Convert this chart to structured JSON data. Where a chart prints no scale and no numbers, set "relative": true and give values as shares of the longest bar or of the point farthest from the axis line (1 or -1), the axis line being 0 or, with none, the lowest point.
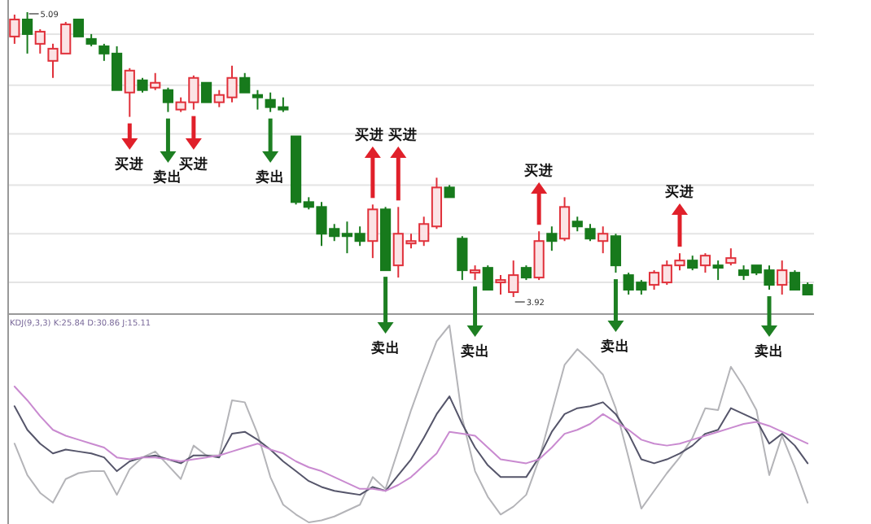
{
  "chart_data": [
    {
      "type": "candlestick",
      "categories": [
        null,
        null,
        null,
        null,
        null,
        null,
        null,
        null,
        null,
        null,
        null,
        null,
        null,
        null,
        null,
        null,
        null,
        null,
        null,
        null,
        null,
        null,
        null,
        null,
        null,
        null,
        null,
        null,
        null,
        null,
        null,
        null,
        null,
        null,
        null,
        null,
        null,
        null,
        null,
        null,
        null,
        null,
        null,
        null,
        null,
        null,
        null,
        null,
        null,
        null,
        null,
        null,
        null,
        null,
        null,
        null,
        null,
        null,
        null,
        null,
        null,
        null,
        null
      ],
      "ylim": [
        3.85,
        5.14
      ],
      "grid": "y",
      "yticks": [
        {
          "value": 5.0,
          "label": null
        },
        {
          "value": 4.79,
          "label": null
        },
        {
          "value": 4.59,
          "label": null
        },
        {
          "value": 4.38,
          "label": null
        },
        {
          "value": 4.18,
          "label": null
        },
        {
          "value": 3.98,
          "label": null
        }
      ],
      "ohlc": [
        [
          4.99,
          5.08,
          4.96,
          5.06
        ],
        [
          5.06,
          5.09,
          4.92,
          5.0
        ],
        [
          4.96,
          5.02,
          4.92,
          5.01
        ],
        [
          4.89,
          4.96,
          4.82,
          4.94
        ],
        [
          4.92,
          5.05,
          4.92,
          5.04
        ],
        [
          5.06,
          5.06,
          4.99,
          4.99
        ],
        [
          4.98,
          5.0,
          4.95,
          4.96
        ],
        [
          4.95,
          4.96,
          4.89,
          4.92
        ],
        [
          4.92,
          4.95,
          4.77,
          4.77
        ],
        [
          4.76,
          4.86,
          4.66,
          4.85
        ],
        [
          4.81,
          4.82,
          4.76,
          4.77
        ],
        [
          4.78,
          4.84,
          4.77,
          4.8
        ],
        [
          4.77,
          4.78,
          4.68,
          4.72
        ],
        [
          4.69,
          4.74,
          4.68,
          4.72
        ],
        [
          4.72,
          4.83,
          4.69,
          4.82
        ],
        [
          4.8,
          4.8,
          4.72,
          4.72
        ],
        [
          4.72,
          4.77,
          4.7,
          4.75
        ],
        [
          4.74,
          4.87,
          4.72,
          4.82
        ],
        [
          4.82,
          4.84,
          4.76,
          4.76
        ],
        [
          4.75,
          4.77,
          4.69,
          4.74
        ],
        [
          4.73,
          4.76,
          4.68,
          4.7
        ],
        [
          4.7,
          4.74,
          4.68,
          4.69
        ],
        [
          4.58,
          4.58,
          4.3,
          4.31
        ],
        [
          4.31,
          4.33,
          4.28,
          4.29
        ],
        [
          4.29,
          4.31,
          4.13,
          4.18
        ],
        [
          4.2,
          4.22,
          4.15,
          4.17
        ],
        [
          4.18,
          4.23,
          4.1,
          4.17
        ],
        [
          4.18,
          4.21,
          4.13,
          4.15
        ],
        [
          4.15,
          4.3,
          4.08,
          4.28
        ],
        [
          4.28,
          4.29,
          4.03,
          4.03
        ],
        [
          4.05,
          4.29,
          4.0,
          4.18
        ],
        [
          4.14,
          4.18,
          4.12,
          4.15
        ],
        [
          4.15,
          4.25,
          4.13,
          4.22
        ],
        [
          4.21,
          4.41,
          4.2,
          4.37
        ],
        [
          4.37,
          4.38,
          4.33,
          4.33
        ],
        [
          4.16,
          4.17,
          3.99,
          4.03
        ],
        [
          4.02,
          4.05,
          3.99,
          4.03
        ],
        [
          4.04,
          4.05,
          3.95,
          3.95
        ],
        [
          3.98,
          4.01,
          3.93,
          3.99
        ],
        [
          3.94,
          4.07,
          3.92,
          4.01
        ],
        [
          4.04,
          4.05,
          3.99,
          4.0
        ],
        [
          4.0,
          4.19,
          3.99,
          4.15
        ],
        [
          4.18,
          4.21,
          4.11,
          4.15
        ],
        [
          4.16,
          4.33,
          4.15,
          4.29
        ],
        [
          4.23,
          4.25,
          4.19,
          4.21
        ],
        [
          4.2,
          4.22,
          4.15,
          4.16
        ],
        [
          4.15,
          4.21,
          4.1,
          4.18
        ],
        [
          4.17,
          4.18,
          4.02,
          4.05
        ],
        [
          4.01,
          4.02,
          3.93,
          3.95
        ],
        [
          3.98,
          3.99,
          3.93,
          3.95
        ],
        [
          3.97,
          4.03,
          3.95,
          4.02
        ],
        [
          3.98,
          4.07,
          3.97,
          4.05
        ],
        [
          4.05,
          4.1,
          4.03,
          4.07
        ],
        [
          4.07,
          4.09,
          4.03,
          4.04
        ],
        [
          4.05,
          4.1,
          4.02,
          4.09
        ],
        [
          4.05,
          4.07,
          3.99,
          4.04
        ],
        [
          4.06,
          4.12,
          4.05,
          4.08
        ],
        [
          4.03,
          4.05,
          3.99,
          4.01
        ],
        [
          4.05,
          4.05,
          4.01,
          4.02
        ],
        [
          4.03,
          4.05,
          3.95,
          3.97
        ],
        [
          3.97,
          4.07,
          3.93,
          4.03
        ],
        [
          4.02,
          4.03,
          3.95,
          3.95
        ],
        [
          3.97,
          3.98,
          3.93,
          3.93
        ]
      ],
      "annotations": [
        "5.09",
        "3.92",
        "买进",
        "卖出",
        "买进",
        "卖出",
        "买进",
        "买进",
        "卖出",
        "卖出",
        "买进",
        "卖出",
        "买进",
        "卖出"
      ]
    },
    {
      "type": "line",
      "title": "KDJ(9,3,3) K:25.84 D:30.86 J:15.11",
      "relative": true,
      "categories": [
        null,
        null,
        null,
        null,
        null,
        null,
        null,
        null,
        null,
        null,
        null,
        null,
        null,
        null,
        null,
        null,
        null,
        null,
        null,
        null,
        null,
        null,
        null,
        null,
        null,
        null,
        null,
        null,
        null,
        null,
        null,
        null,
        null,
        null,
        null,
        null,
        null,
        null,
        null,
        null,
        null,
        null,
        null,
        null,
        null,
        null,
        null,
        null,
        null,
        null,
        null,
        null,
        null,
        null,
        null,
        null,
        null,
        null,
        null,
        null,
        null,
        null,
        null
      ],
      "series": [
        {
          "color": "#b4b4b8",
          "values": [
            0.4,
            0.24,
            0.15,
            0.1,
            0.22,
            0.25,
            0.26,
            0.26,
            0.14,
            0.27,
            0.33,
            0.36,
            0.29,
            0.22,
            0.39,
            0.34,
            0.34,
            0.62,
            0.61,
            0.45,
            0.23,
            0.09,
            0.04,
            0,
            0.01,
            0.03,
            0.06,
            0.09,
            0.23,
            0.17,
            0.37,
            0.57,
            0.75,
            0.92,
            1,
            0.53,
            0.26,
            0.13,
            0.04,
            0.08,
            0.14,
            0.32,
            0.56,
            0.8,
            0.88,
            0.82,
            0.75,
            0.58,
            0.33,
            0.07,
            0.16,
            0.25,
            0.33,
            0.43,
            0.58,
            0.57,
            0.79,
            0.69,
            0.57,
            0.24,
            0.44,
            0.28,
            0.1
          ]
        },
        {
          "color": "#55556a",
          "values": [
            0.59,
            0.47,
            0.4,
            0.35,
            0.37,
            0.36,
            0.35,
            0.33,
            0.26,
            0.31,
            0.33,
            0.34,
            0.32,
            0.3,
            0.34,
            0.34,
            0.33,
            0.45,
            0.46,
            0.42,
            0.37,
            0.31,
            0.26,
            0.21,
            0.18,
            0.16,
            0.15,
            0.14,
            0.18,
            0.16,
            0.24,
            0.32,
            0.43,
            0.55,
            0.64,
            0.5,
            0.38,
            0.29,
            0.23,
            0.23,
            0.23,
            0.33,
            0.46,
            0.55,
            0.58,
            0.59,
            0.61,
            0.55,
            0.45,
            0.32,
            0.3,
            0.32,
            0.35,
            0.39,
            0.45,
            0.47,
            0.58,
            0.55,
            0.52,
            0.4,
            0.45,
            0.39,
            0.3
          ]
        },
        {
          "color": "#c98ad0",
          "values": [
            0.69,
            0.62,
            0.54,
            0.47,
            0.44,
            0.42,
            0.4,
            0.38,
            0.33,
            0.32,
            0.33,
            0.33,
            0.32,
            0.31,
            0.32,
            0.33,
            0.34,
            0.36,
            0.38,
            0.4,
            0.37,
            0.35,
            0.31,
            0.28,
            0.26,
            0.23,
            0.2,
            0.17,
            0.17,
            0.16,
            0.19,
            0.23,
            0.29,
            0.35,
            0.46,
            0.45,
            0.44,
            0.38,
            0.32,
            0.31,
            0.3,
            0.32,
            0.38,
            0.45,
            0.47,
            0.5,
            0.55,
            0.51,
            0.47,
            0.42,
            0.4,
            0.39,
            0.4,
            0.42,
            0.44,
            0.46,
            0.48,
            0.5,
            0.51,
            0.49,
            0.46,
            0.43,
            0.4
          ]
        }
      ]
    }
  ]
}
